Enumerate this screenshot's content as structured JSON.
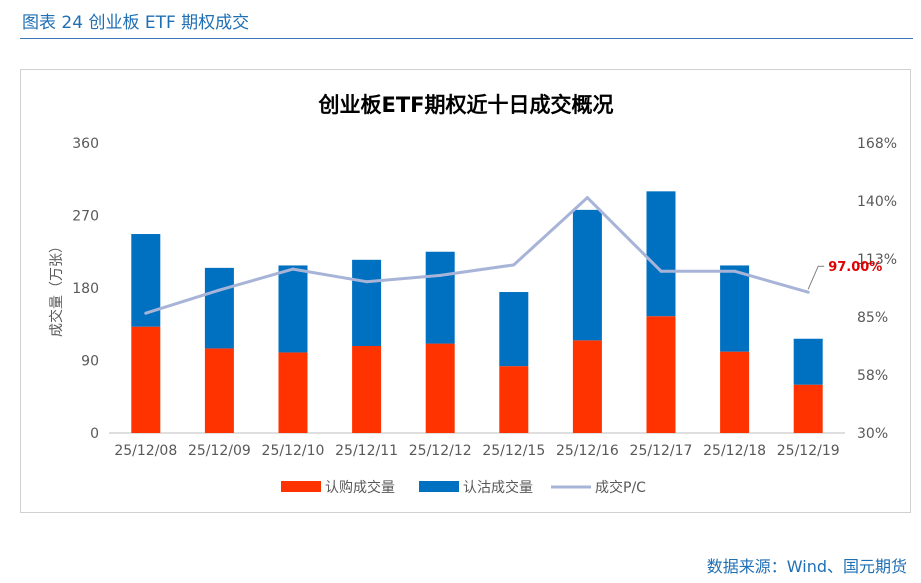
{
  "figure_caption": "图表 24 创业板 ETF 期权成交",
  "source": "数据来源：Wind、国元期货",
  "colors": {
    "call_bar": "#ff3300",
    "put_bar": "#0070c0",
    "pc_line": "#a7b4d8",
    "last_label": "#e00000",
    "caption": "#1f6fb5"
  },
  "chart_data": {
    "type": "bar",
    "stacked": true,
    "title": "创业板ETF期权近十日成交概况",
    "categories": [
      "25/12/08",
      "25/12/09",
      "25/12/10",
      "25/12/11",
      "25/12/12",
      "25/12/15",
      "25/12/16",
      "25/12/17",
      "25/12/18",
      "25/12/19"
    ],
    "ylabel": "成交量（万张）",
    "ylim": [
      0,
      360
    ],
    "yticks": [
      "0",
      "90",
      "180",
      "270",
      "360"
    ],
    "y2lim": [
      30,
      168
    ],
    "y2ticks": [
      "30%",
      "58%",
      "85%",
      "113%",
      "140%",
      "168%"
    ],
    "series": [
      {
        "name": "认购成交量",
        "axis": "left",
        "kind": "bar",
        "values": [
          132,
          105,
          100,
          108,
          111,
          83,
          115,
          145,
          101,
          60
        ]
      },
      {
        "name": "认沽成交量",
        "axis": "left",
        "kind": "bar",
        "values": [
          115,
          100,
          108,
          107,
          114,
          92,
          162,
          155,
          107,
          57
        ]
      },
      {
        "name": "成交P/C",
        "axis": "right",
        "kind": "line",
        "values": [
          87,
          98,
          108,
          102,
          105,
          110,
          142,
          107,
          107,
          97
        ]
      }
    ],
    "annotation": {
      "index": 9,
      "text": "97.00%"
    },
    "legend": [
      "认购成交量",
      "认沽成交量",
      "成交P/C"
    ],
    "legend_position": "bottom",
    "grid": false
  }
}
